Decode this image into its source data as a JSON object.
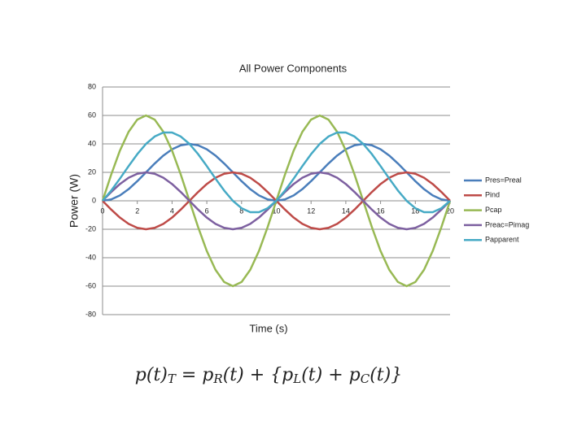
{
  "chart_data": {
    "type": "line",
    "title": "All Power Components",
    "x_label": "Time (s)",
    "y_label": "Power (W)",
    "x": [
      0,
      0.5,
      1,
      1.5,
      2,
      2.5,
      3,
      3.5,
      4,
      4.5,
      5,
      5.5,
      6,
      6.5,
      7,
      7.5,
      8,
      8.5,
      9,
      9.5,
      10,
      10.5,
      11,
      11.5,
      12,
      12.5,
      13,
      13.5,
      14,
      14.5,
      15,
      15.5,
      16,
      16.5,
      17,
      17.5,
      18,
      18.5,
      19,
      19.5,
      20
    ],
    "series": [
      {
        "name": "Pres=Preal",
        "color": "#4a7ebb",
        "values": [
          0,
          1,
          3.8,
          8.2,
          13.8,
          20,
          26.2,
          31.8,
          36.2,
          39,
          40,
          39,
          36.2,
          31.8,
          26.2,
          20,
          13.8,
          8.2,
          3.8,
          1,
          0,
          1,
          3.8,
          8.2,
          13.8,
          20,
          26.2,
          31.8,
          36.2,
          39,
          40,
          39,
          36.2,
          31.8,
          26.2,
          20,
          13.8,
          8.2,
          3.8,
          1,
          0
        ]
      },
      {
        "name": "Pind",
        "color": "#be4b48",
        "values": [
          0,
          -6.2,
          -11.8,
          -16.2,
          -19,
          -20,
          -19,
          -16.2,
          -11.8,
          -6.2,
          0,
          6.2,
          11.8,
          16.2,
          19,
          20,
          19,
          16.2,
          11.8,
          6.2,
          0,
          -6.2,
          -11.8,
          -16.2,
          -19,
          -20,
          -19,
          -16.2,
          -11.8,
          -6.2,
          0,
          6.2,
          11.8,
          16.2,
          19,
          20,
          19,
          16.2,
          11.8,
          6.2,
          0
        ]
      },
      {
        "name": "Pcap",
        "color": "#98b954",
        "values": [
          0,
          18.5,
          35.3,
          48.5,
          57.1,
          60,
          57.1,
          48.5,
          35.3,
          18.5,
          0,
          -18.5,
          -35.3,
          -48.5,
          -57.1,
          -60,
          -57.1,
          -48.5,
          -35.3,
          -18.5,
          0,
          18.5,
          35.3,
          48.5,
          57.1,
          60,
          57.1,
          48.5,
          35.3,
          18.5,
          0,
          -18.5,
          -35.3,
          -48.5,
          -57.1,
          -60,
          -57.1,
          -48.5,
          -35.3,
          -18.5,
          0
        ]
      },
      {
        "name": "Preac=Pimag",
        "color": "#7d60a0",
        "values": [
          0,
          6.2,
          11.8,
          16.2,
          19,
          20,
          19,
          16.2,
          11.8,
          6.2,
          0,
          -6.2,
          -11.8,
          -16.2,
          -19,
          -20,
          -19,
          -16.2,
          -11.8,
          -6.2,
          0,
          6.2,
          11.8,
          16.2,
          19,
          20,
          19,
          16.2,
          11.8,
          6.2,
          0,
          -6.2,
          -11.8,
          -16.2,
          -19,
          -20,
          -19,
          -16.2,
          -11.8,
          -6.2,
          0
        ]
      },
      {
        "name": "Papparent",
        "color": "#46aac5",
        "values": [
          0,
          7.2,
          15.6,
          24.4,
          32.8,
          40,
          45.2,
          48,
          48,
          45.2,
          40,
          32.8,
          24.4,
          15.6,
          7.2,
          0,
          -5.2,
          -8,
          -8,
          -5.2,
          0,
          7.2,
          15.6,
          24.4,
          32.8,
          40,
          45.2,
          48,
          48,
          45.2,
          40,
          32.8,
          24.4,
          15.6,
          7.2,
          0,
          -5.2,
          -8,
          -8,
          -5.2,
          0
        ]
      }
    ],
    "xlim": [
      0,
      20
    ],
    "xticks": [
      0,
      2,
      4,
      6,
      8,
      10,
      12,
      14,
      16,
      18,
      20
    ],
    "ylim": [
      -80,
      80
    ],
    "yticks": [
      80,
      60,
      40,
      20,
      0,
      -20,
      -40,
      -60,
      -80
    ],
    "grid": true,
    "legend": "right",
    "formula": [
      {
        "text": "p(t)",
        "sub": "T"
      },
      {
        "text": " = p",
        "sub": "R"
      },
      {
        "text": "(t) + {p",
        "sub": "L"
      },
      {
        "text": "(t) + p",
        "sub": "C"
      },
      {
        "text": "(t)}"
      }
    ]
  }
}
